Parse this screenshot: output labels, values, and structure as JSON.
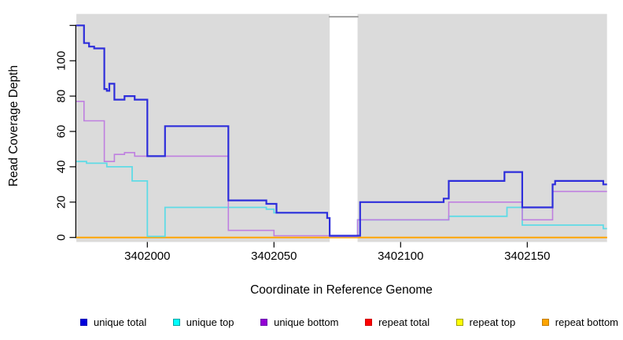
{
  "figure": {
    "xlabel": "Coordinate in Reference Genome",
    "ylabel": "Read Coverage Depth"
  },
  "chart_data": {
    "type": "line",
    "style": "step-after",
    "title": "",
    "xlabel": "Coordinate in Reference Genome",
    "ylabel": "Read Coverage Depth",
    "xlim": [
      3401972,
      3402181.5
    ],
    "ylim": [
      0,
      120
    ],
    "x_ticks": [
      3402000,
      3402050,
      3402100,
      3402150
    ],
    "y_ticks": [
      0,
      20,
      40,
      60,
      80,
      100
    ],
    "y_tick_unlabeled": 120,
    "grid": false,
    "plot_background": "#dbdbdb",
    "masked_region": {
      "start": 3402072,
      "end": 3402083,
      "fill": "#ffffff",
      "top_line_color": "#8c8c8c"
    },
    "legend_position": "bottom",
    "legend_order": [
      "unique total",
      "unique top",
      "unique bottom",
      "repeat total",
      "repeat top",
      "repeat bottom"
    ],
    "series": [
      {
        "name": "repeat total",
        "color": "#ff0000",
        "swatch": "#ff0000",
        "swatch_border": "#cc0000",
        "width": 1.5,
        "lift_zero": false,
        "steps": [
          [
            3401972,
            0
          ]
        ]
      },
      {
        "name": "repeat top",
        "color": "#ffff00",
        "swatch": "#ffff00",
        "swatch_border": "#a0a000",
        "width": 1.5,
        "lift_zero": false,
        "steps": [
          [
            3401972,
            0
          ]
        ]
      },
      {
        "name": "repeat bottom",
        "color": "#ffa500",
        "swatch": "#ffa500",
        "swatch_border": "#c27d00",
        "width": 2,
        "lift_zero": false,
        "steps": [
          [
            3401972,
            0
          ]
        ]
      },
      {
        "name": "unique top",
        "color": "#5fdbe6",
        "swatch": "#00ffff",
        "swatch_border": "#00a3a3",
        "width": 1.8,
        "lift_zero": true,
        "steps": [
          [
            3401972,
            43
          ],
          [
            3401976,
            42
          ],
          [
            3401984,
            40
          ],
          [
            3401994,
            32
          ],
          [
            3402000,
            0
          ],
          [
            3402007,
            17
          ],
          [
            3402047,
            16
          ],
          [
            3402050,
            14
          ],
          [
            3402071,
            11
          ],
          [
            3402072,
            0
          ],
          [
            3402083,
            10
          ],
          [
            3402119,
            12
          ],
          [
            3402142,
            17
          ],
          [
            3402148,
            7
          ],
          [
            3402180,
            5
          ]
        ]
      },
      {
        "name": "unique bottom",
        "color": "#bf7fe0",
        "swatch": "#9400d3",
        "swatch_border": "#6a0dad",
        "width": 1.6,
        "lift_zero": true,
        "steps": [
          [
            3401972,
            77
          ],
          [
            3401975,
            66
          ],
          [
            3401983,
            43
          ],
          [
            3401987,
            47
          ],
          [
            3401991,
            48
          ],
          [
            3401995,
            46
          ],
          [
            3402032,
            4
          ],
          [
            3402050,
            1
          ],
          [
            3402072,
            0
          ],
          [
            3402083,
            10
          ],
          [
            3402119,
            20
          ],
          [
            3402148,
            10
          ],
          [
            3402160,
            26
          ]
        ]
      },
      {
        "name": "unique total",
        "color": "#2e2edb",
        "swatch": "#0000dc",
        "swatch_border": "#0000b4",
        "width": 2.2,
        "lift_zero": true,
        "steps": [
          [
            3401972,
            120
          ],
          [
            3401975,
            110
          ],
          [
            3401977,
            108
          ],
          [
            3401979,
            107
          ],
          [
            3401983,
            84
          ],
          [
            3401984,
            83
          ],
          [
            3401985,
            87
          ],
          [
            3401987,
            78
          ],
          [
            3401991,
            80
          ],
          [
            3401995,
            78
          ],
          [
            3402000,
            46
          ],
          [
            3402007,
            63
          ],
          [
            3402032,
            21
          ],
          [
            3402047,
            19
          ],
          [
            3402051,
            14
          ],
          [
            3402071,
            11
          ],
          [
            3402072,
            1
          ],
          [
            3402084,
            20
          ],
          [
            3402117,
            22
          ],
          [
            3402119,
            32
          ],
          [
            3402141,
            37
          ],
          [
            3402148,
            17
          ],
          [
            3402160,
            30
          ],
          [
            3402161,
            32
          ],
          [
            3402180,
            30
          ]
        ]
      }
    ]
  }
}
